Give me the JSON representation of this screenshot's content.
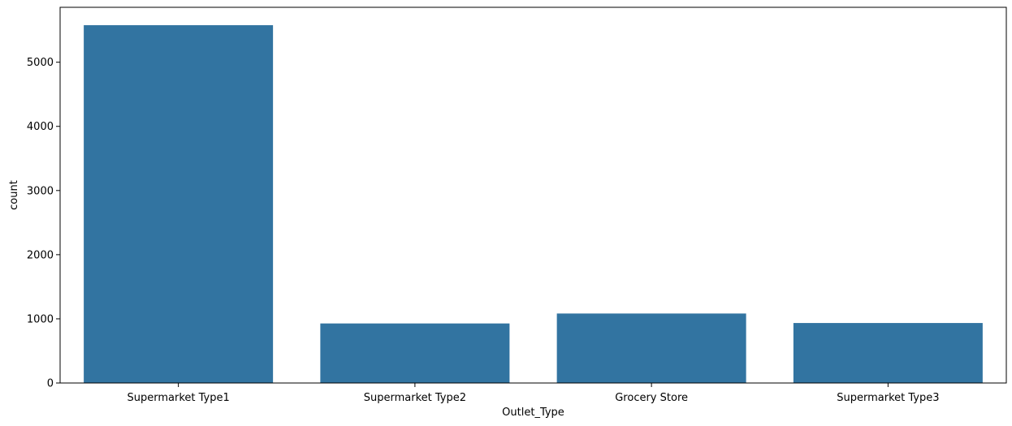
{
  "chart_data": {
    "type": "bar",
    "categories": [
      "Supermarket Type1",
      "Supermarket Type2",
      "Grocery Store",
      "Supermarket Type3"
    ],
    "values": [
      5577,
      928,
      1083,
      935
    ],
    "xlabel": "Outlet_Type",
    "ylabel": "count",
    "ylim": [
      0,
      5855.85
    ],
    "yticks": [
      0,
      1000,
      2000,
      3000,
      4000,
      5000
    ],
    "ytick_labels": [
      "0",
      "1000",
      "2000",
      "3000",
      "4000",
      "5000"
    ],
    "bar_color": "#3274a1",
    "grid": false,
    "legend": "none"
  }
}
